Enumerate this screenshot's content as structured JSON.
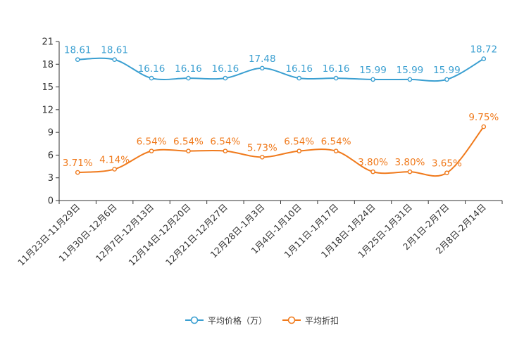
{
  "chart_data": {
    "type": "line",
    "title": "",
    "xlabel": "",
    "ylabel": "",
    "categories": [
      "11月23日-11月29日",
      "11月30日-12月6日",
      "12月7日-12月13日",
      "12月14日-12月20日",
      "12月21日-12月27日",
      "12月28日-1月3日",
      "1月4日-1月10日",
      "1月11日-1月17日",
      "1月18日-1月24日",
      "1月25日-1月31日",
      "2月1日-2月7日",
      "2月8日-2月14日"
    ],
    "ylim": [
      0,
      21
    ],
    "yticks": [
      "0",
      "3",
      "6",
      "9",
      "12",
      "15",
      "18",
      "21"
    ],
    "grid": false,
    "legend_position": "bottom-center",
    "series": [
      {
        "name": "平均价格（万）",
        "color": "#3a9fd1",
        "values": [
          18.61,
          18.61,
          16.16,
          16.16,
          16.16,
          17.48,
          16.16,
          16.16,
          15.99,
          15.99,
          15.99,
          18.72
        ],
        "labels": [
          "18.61",
          "18.61",
          "16.16",
          "16.16",
          "16.16",
          "17.48",
          "16.16",
          "16.16",
          "15.99",
          "15.99",
          "15.99",
          "18.72"
        ]
      },
      {
        "name": "平均折扣",
        "color": "#f07a1c",
        "values": [
          3.71,
          4.14,
          6.54,
          6.54,
          6.54,
          5.73,
          6.54,
          6.54,
          3.8,
          3.8,
          3.65,
          9.75
        ],
        "labels": [
          "3.71%",
          "4.14%",
          "6.54%",
          "6.54%",
          "6.54%",
          "5.73%",
          "6.54%",
          "6.54%",
          "3.80%",
          "3.80%",
          "3.65%",
          "9.75%"
        ]
      }
    ]
  }
}
